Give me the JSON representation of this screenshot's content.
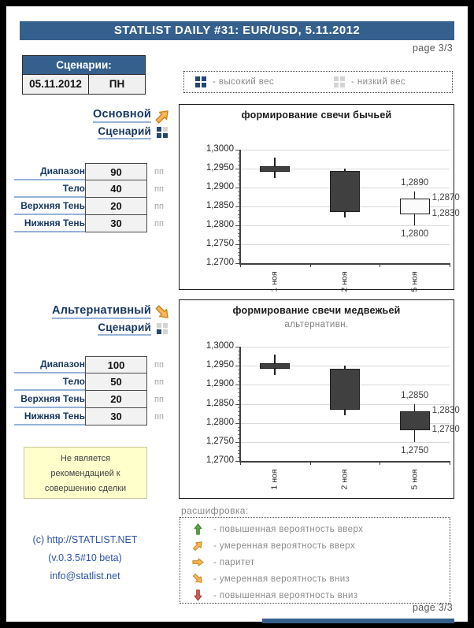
{
  "page": {
    "page_label_top": "page 3/3",
    "page_label_bottom": "page 3/3",
    "accent_blue": "#35608D"
  },
  "header": {
    "title": "STATLIST DAILY #31: EUR/USD, 5.11.2012"
  },
  "scenarios_box": {
    "title": "Сценарии:",
    "date": "05.11.2012",
    "day": "ПН"
  },
  "weight_legend": {
    "items": [
      {
        "icon": "squares-grid",
        "pattern": [
          "dark",
          "dark",
          "dark",
          "dark"
        ],
        "label": "- высокий вес"
      },
      {
        "icon": "squares-grid",
        "pattern": [
          "light",
          "light",
          "light",
          "light"
        ],
        "label": "- низкий вес"
      }
    ]
  },
  "scenario_main": {
    "title_line1": "Основной",
    "title_line2": "Сценарий",
    "arrow": {
      "direction": "up-right",
      "color": "orange"
    },
    "weight_icon": {
      "pattern": [
        "dark",
        "light",
        "dark",
        "dark"
      ]
    },
    "params": [
      {
        "label": "Диапазон",
        "value": "90",
        "unit": "пп"
      },
      {
        "label": "Тело",
        "value": "40",
        "unit": "пп"
      },
      {
        "label": "Верхняя Тень",
        "value": "20",
        "unit": "пп"
      },
      {
        "label": "Нижняя Тень",
        "value": "30",
        "unit": "пп"
      }
    ]
  },
  "scenario_alt": {
    "title_line1": "Альтернативный",
    "title_line2": "Сценарий",
    "arrow": {
      "direction": "down-right",
      "color": "orange"
    },
    "weight_icon": {
      "pattern": [
        "light",
        "light",
        "dark",
        "light"
      ]
    },
    "params": [
      {
        "label": "Диапазон",
        "value": "100",
        "unit": "пп"
      },
      {
        "label": "Тело",
        "value": "50",
        "unit": "пп"
      },
      {
        "label": "Верхняя Тень",
        "value": "20",
        "unit": "пп"
      },
      {
        "label": "Нижняя Тень",
        "value": "30",
        "unit": "пп"
      }
    ]
  },
  "disclaimer": {
    "lines": [
      "Не является",
      "рекомендацией к",
      "совершению сделки"
    ]
  },
  "footer": {
    "line1": "(c) http://STATLIST.NET",
    "line2": "(v.0.3.5#10 beta)",
    "line3": "info@statlist.net"
  },
  "decoding_legend": {
    "title": "расшифровка:",
    "items": [
      {
        "arrow": "up",
        "color": "green",
        "label": "- повышенная вероятность вверх"
      },
      {
        "arrow": "up-right",
        "color": "orange",
        "label": "- умеренная вероятность вверх"
      },
      {
        "arrow": "right",
        "color": "orange",
        "label": "- паритет"
      },
      {
        "arrow": "down-right",
        "color": "orange",
        "label": "- умеренная вероятность вниз"
      },
      {
        "arrow": "down",
        "color": "red",
        "label": "- повышенная вероятность вниз"
      }
    ]
  },
  "icons": {
    "arrow_colors": {
      "green": {
        "fill": "#5FA04C",
        "stroke": "#41802F"
      },
      "orange": {
        "fill": "#F9B75B",
        "stroke": "#C9861E"
      },
      "red": {
        "fill": "#D45F5B",
        "stroke": "#A03C38"
      }
    },
    "square_dark": "#24486E",
    "square_light": "#D4D4D4"
  },
  "chart_style": {
    "body_dark": "#404040",
    "body_light": "#FBFBFB",
    "grid_color": "#D9D9D9",
    "label_color": "#404040"
  },
  "chart_data": [
    {
      "type": "candlestick",
      "title": "формирование свечи бычьей",
      "subtitle": "",
      "ylim": [
        1.27,
        1.3
      ],
      "y_tick_step": 0.005,
      "y_tick_labels": [
        "1,3000",
        "1,2950",
        "1,2900",
        "1,2850",
        "1,2800",
        "1,2750",
        "1,2700"
      ],
      "categories": [
        "1 ноя",
        "2 ноя",
        "5 ноя"
      ],
      "grid": true,
      "legend": "none",
      "candles": [
        {
          "category": "1 ноя",
          "open": 1.2957,
          "high": 1.298,
          "low": 1.2925,
          "close": 1.2942,
          "body": "dark"
        },
        {
          "category": "2 ноя",
          "open": 1.2943,
          "high": 1.295,
          "low": 1.282,
          "close": 1.2835,
          "body": "dark"
        },
        {
          "category": "5 ноя",
          "open": 1.283,
          "high": 1.289,
          "low": 1.28,
          "close": 1.287,
          "body": "white",
          "labels": {
            "high": "1,2890",
            "body_top": "1,2870",
            "body_bottom": "1,2830",
            "low": "1,2800"
          }
        }
      ]
    },
    {
      "type": "candlestick",
      "title": "формирование свечи медвежьей",
      "subtitle": "альтернативн.",
      "ylim": [
        1.27,
        1.3
      ],
      "y_tick_step": 0.005,
      "y_tick_labels": [
        "1,3000",
        "1,2950",
        "1,2900",
        "1,2850",
        "1,2800",
        "1,2750",
        "1,2700"
      ],
      "categories": [
        "1 ноя",
        "2 ноя",
        "5 ноя"
      ],
      "grid": true,
      "legend": "none",
      "candles": [
        {
          "category": "1 ноя",
          "open": 1.2957,
          "high": 1.298,
          "low": 1.2925,
          "close": 1.2942,
          "body": "dark"
        },
        {
          "category": "2 ноя",
          "open": 1.2943,
          "high": 1.295,
          "low": 1.282,
          "close": 1.2835,
          "body": "dark"
        },
        {
          "category": "5 ноя",
          "open": 1.283,
          "high": 1.285,
          "low": 1.275,
          "close": 1.278,
          "body": "dark",
          "labels": {
            "high": "1,2850",
            "body_top": "1,2830",
            "body_bottom": "1,2780",
            "low": "1,2750"
          }
        }
      ]
    }
  ]
}
